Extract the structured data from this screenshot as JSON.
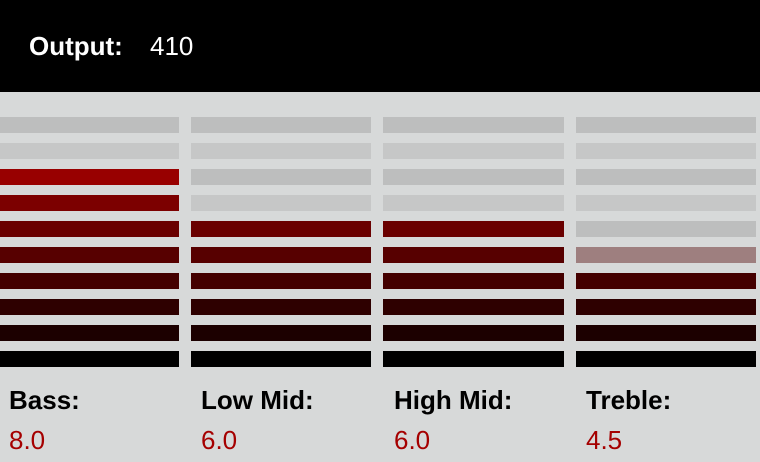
{
  "output": {
    "label": "Output:",
    "value": "410"
  },
  "meter": {
    "segments": 10,
    "inactive_color": "#c8c9c9",
    "lit_colors_bottom_to_top": [
      "#000000",
      "#1c0000",
      "#2e0000",
      "#440000",
      "#570000",
      "#6a0000",
      "#7c0000",
      "#980000",
      "#b00000",
      "#c50000"
    ]
  },
  "bands": [
    {
      "label": "Bass:",
      "value": "8.0",
      "level": 8.0
    },
    {
      "label": "Low Mid:",
      "value": "6.0",
      "level": 6.0
    },
    {
      "label": "High Mid:",
      "value": "6.0",
      "level": 6.0
    },
    {
      "label": "Treble:",
      "value": "4.5",
      "level": 4.5
    }
  ]
}
